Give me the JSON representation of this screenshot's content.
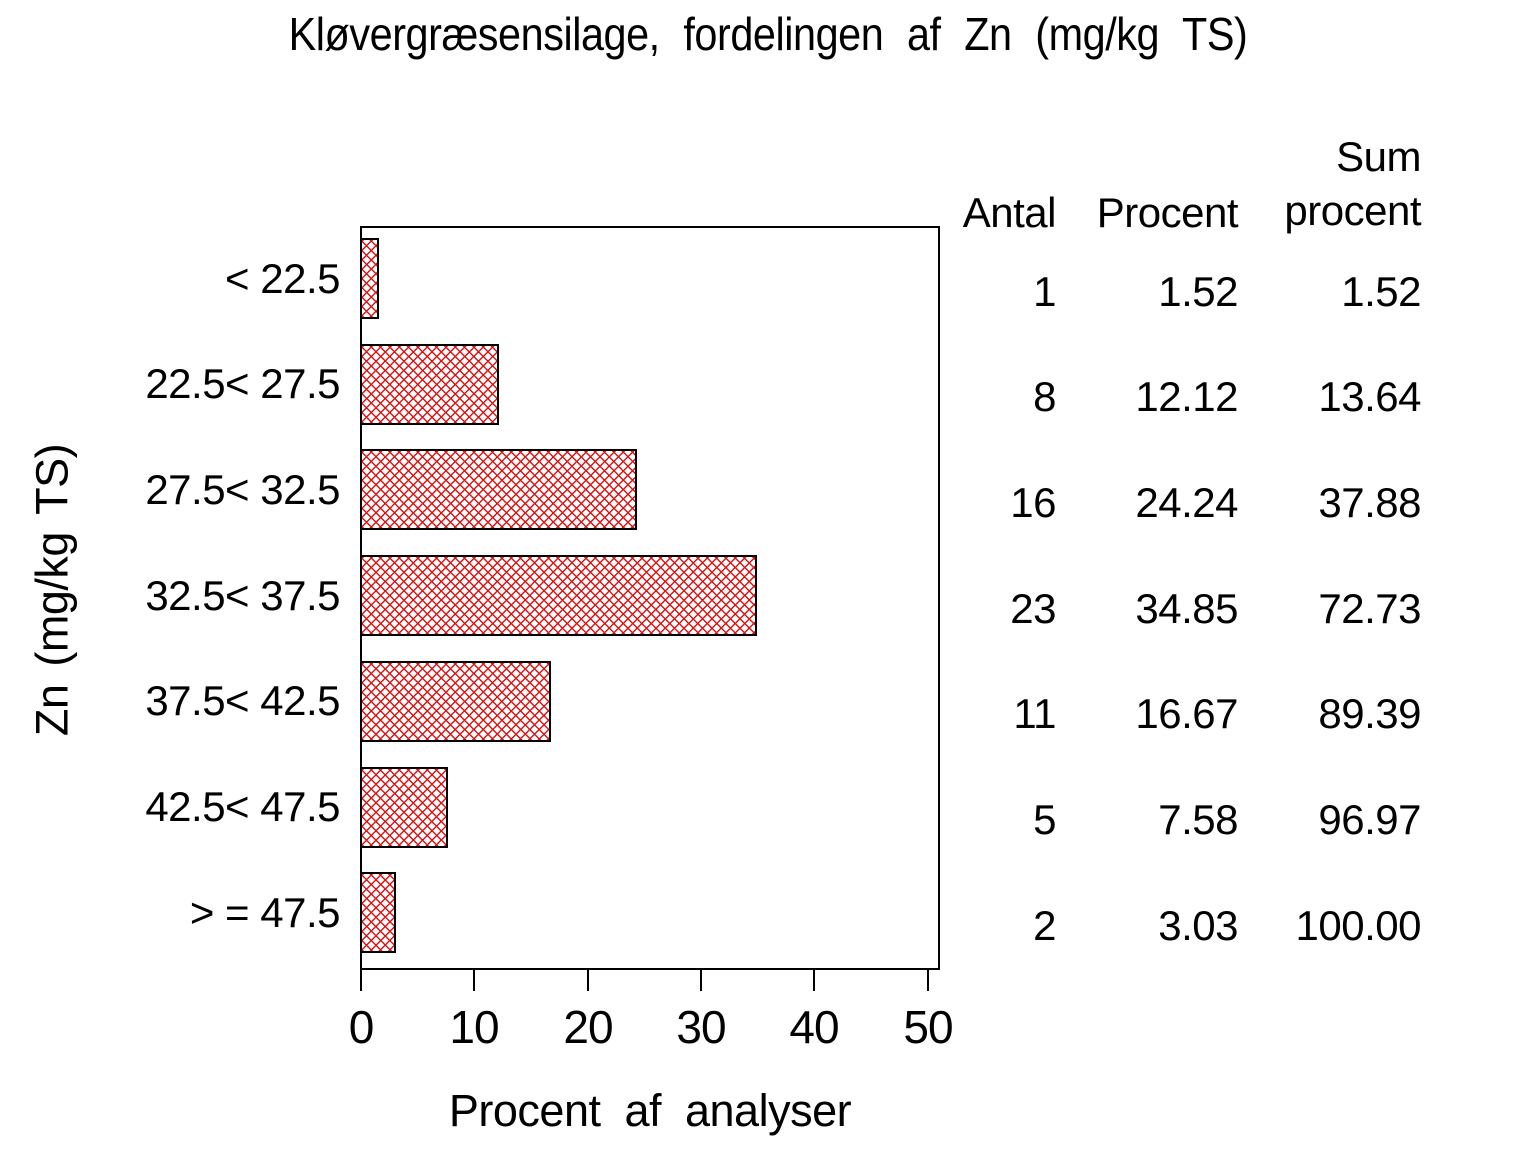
{
  "title": "Kløvergræsensilage, fordelingen af Zn (mg/kg TS)",
  "chart_data": {
    "type": "bar",
    "orientation": "horizontal",
    "title": "Kløvergræsensilage, fordelingen af Zn (mg/kg TS)",
    "xlabel": "Procent af analyser",
    "ylabel": "Zn (mg/kg TS)",
    "categories": [
      "< 22.5",
      "22.5< 27.5",
      "27.5< 32.5",
      "32.5< 37.5",
      "37.5< 42.5",
      "42.5< 47.5",
      "> = 47.5"
    ],
    "values": [
      1.52,
      12.12,
      24.24,
      34.85,
      16.67,
      7.58,
      3.03
    ],
    "counts": [
      1,
      8,
      16,
      23,
      11,
      5,
      2
    ],
    "cumulative_percent": [
      1.52,
      13.64,
      37.88,
      72.73,
      89.39,
      96.97,
      100.0
    ],
    "xlim": [
      0,
      50
    ],
    "xticks": [
      0,
      10,
      20,
      30,
      40,
      50
    ],
    "grid": false,
    "legend": "none",
    "bar_style": "red diagonal crosshatch on white, black outline",
    "bar_color": "#dd1515",
    "bar_border_color": "#000000",
    "frame_color": "#000000",
    "text_color": "#000000",
    "background_color": "#ffffff"
  },
  "table": {
    "headers": [
      "Antal",
      "Procent",
      "Sum procent"
    ],
    "rows": [
      {
        "antal": "1",
        "procent": "1.52",
        "sum": "1.52"
      },
      {
        "antal": "8",
        "procent": "12.12",
        "sum": "13.64"
      },
      {
        "antal": "16",
        "procent": "24.24",
        "sum": "37.88"
      },
      {
        "antal": "23",
        "procent": "34.85",
        "sum": "72.73"
      },
      {
        "antal": "11",
        "procent": "16.67",
        "sum": "89.39"
      },
      {
        "antal": "5",
        "procent": "7.58",
        "sum": "96.97"
      },
      {
        "antal": "2",
        "procent": "3.03",
        "sum": "100.00"
      }
    ]
  }
}
